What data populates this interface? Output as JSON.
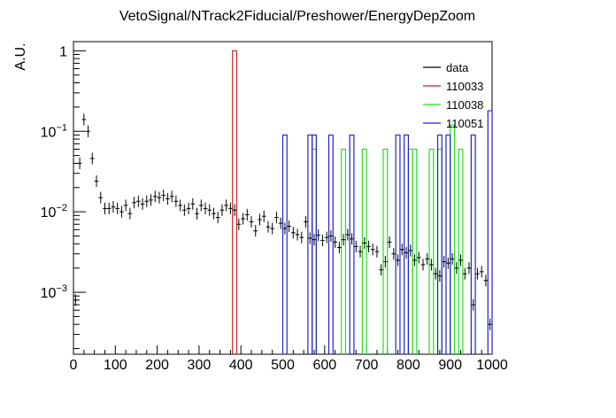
{
  "chart_data": {
    "type": "histogram",
    "title": "VetoSignal/NTrack2Fiducial/Preshower/EnergyDepZoom",
    "xlabel": "",
    "ylabel": "A.U.",
    "xlim": [
      0,
      1000
    ],
    "ylim": [
      0.00017,
      1.3
    ],
    "yscale": "log",
    "grid": false,
    "legend_position": "top-right",
    "x_tick_labels": [
      "0",
      "100",
      "200",
      "300",
      "400",
      "500",
      "600",
      "700",
      "800",
      "900",
      "1000"
    ],
    "y_tick_labels": [
      {
        "base": "10",
        "exp": "−3",
        "value": 0.001
      },
      {
        "base": "10",
        "exp": "−2",
        "value": 0.01
      },
      {
        "base": "10",
        "exp": "−1",
        "value": 0.1
      },
      {
        "base": "1",
        "exp": "",
        "value": 1
      }
    ],
    "bin_width": 10,
    "series": [
      {
        "name": "data",
        "kind": "points",
        "color": "#000000",
        "x": [
          5,
          15,
          25,
          35,
          45,
          55,
          65,
          75,
          85,
          95,
          105,
          115,
          125,
          135,
          145,
          155,
          165,
          175,
          185,
          195,
          205,
          215,
          225,
          235,
          245,
          255,
          265,
          275,
          285,
          295,
          305,
          315,
          325,
          335,
          345,
          355,
          365,
          375,
          385,
          395,
          405,
          415,
          425,
          435,
          445,
          455,
          465,
          475,
          485,
          495,
          505,
          515,
          525,
          535,
          545,
          555,
          565,
          575,
          585,
          595,
          605,
          615,
          625,
          635,
          645,
          655,
          665,
          675,
          685,
          695,
          705,
          715,
          725,
          735,
          745,
          755,
          765,
          775,
          785,
          795,
          805,
          815,
          825,
          835,
          845,
          855,
          865,
          875,
          885,
          895,
          905,
          915,
          925,
          935,
          945,
          955,
          965,
          975,
          985,
          995
        ],
        "y": [
          0.0008,
          0.04,
          0.14,
          0.1,
          0.046,
          0.024,
          0.015,
          0.011,
          0.011,
          0.0115,
          0.011,
          0.01,
          0.012,
          0.0095,
          0.013,
          0.0135,
          0.0125,
          0.0135,
          0.014,
          0.0155,
          0.015,
          0.016,
          0.0145,
          0.0155,
          0.0135,
          0.012,
          0.0105,
          0.011,
          0.0125,
          0.0095,
          0.012,
          0.011,
          0.0105,
          0.0095,
          0.0085,
          0.0105,
          0.012,
          0.011,
          0.0105,
          0.007,
          0.0082,
          0.0092,
          0.0075,
          0.0058,
          0.008,
          0.0088,
          0.0065,
          0.0062,
          0.0085,
          0.0072,
          0.0062,
          0.0066,
          0.0055,
          0.0052,
          0.0048,
          0.0075,
          0.0047,
          0.0045,
          0.0051,
          0.0044,
          0.0048,
          0.005,
          0.0042,
          0.0036,
          0.0045,
          0.0052,
          0.0046,
          0.0037,
          0.0032,
          0.0041,
          0.0037,
          0.0034,
          0.0032,
          0.0019,
          0.0024,
          0.0042,
          0.003,
          0.0025,
          0.0034,
          0.0031,
          0.0033,
          0.0025,
          0.0027,
          0.0022,
          0.0026,
          0.0022,
          0.0017,
          0.0016,
          0.0024,
          0.0023,
          0.0026,
          0.002,
          0.0025,
          0.0017,
          0.002,
          0.0007,
          0.0017,
          0.0018,
          0.0014,
          0.0004
        ]
      },
      {
        "name": "110033",
        "kind": "step",
        "color": "#cc2222",
        "bins": [
          {
            "x0": 380,
            "x1": 390,
            "y": 1.0
          }
        ]
      },
      {
        "name": "110038",
        "kind": "step",
        "color": "#22dd22",
        "bins": [
          {
            "x0": 570,
            "x1": 580,
            "y": 0.06
          },
          {
            "x0": 640,
            "x1": 650,
            "y": 0.06
          },
          {
            "x0": 690,
            "x1": 700,
            "y": 0.06
          },
          {
            "x0": 740,
            "x1": 750,
            "y": 0.06
          },
          {
            "x0": 800,
            "x1": 810,
            "y": 0.06
          },
          {
            "x0": 810,
            "x1": 820,
            "y": 0.06
          },
          {
            "x0": 850,
            "x1": 860,
            "y": 0.06
          },
          {
            "x0": 870,
            "x1": 880,
            "y": 0.06
          },
          {
            "x0": 900,
            "x1": 910,
            "y": 0.12
          },
          {
            "x0": 920,
            "x1": 930,
            "y": 0.06
          }
        ]
      },
      {
        "name": "110051",
        "kind": "step",
        "color": "#2222cc",
        "bins": [
          {
            "x0": 500,
            "x1": 510,
            "y": 0.09
          },
          {
            "x0": 560,
            "x1": 570,
            "y": 0.09
          },
          {
            "x0": 570,
            "x1": 580,
            "y": 0.09
          },
          {
            "x0": 610,
            "x1": 620,
            "y": 0.09
          },
          {
            "x0": 660,
            "x1": 670,
            "y": 0.09
          },
          {
            "x0": 770,
            "x1": 780,
            "y": 0.09
          },
          {
            "x0": 790,
            "x1": 800,
            "y": 0.09
          },
          {
            "x0": 870,
            "x1": 880,
            "y": 0.09
          },
          {
            "x0": 890,
            "x1": 900,
            "y": 0.09
          },
          {
            "x0": 950,
            "x1": 960,
            "y": 0.09
          },
          {
            "x0": 990,
            "x1": 1000,
            "y": 0.18
          }
        ]
      }
    ]
  }
}
